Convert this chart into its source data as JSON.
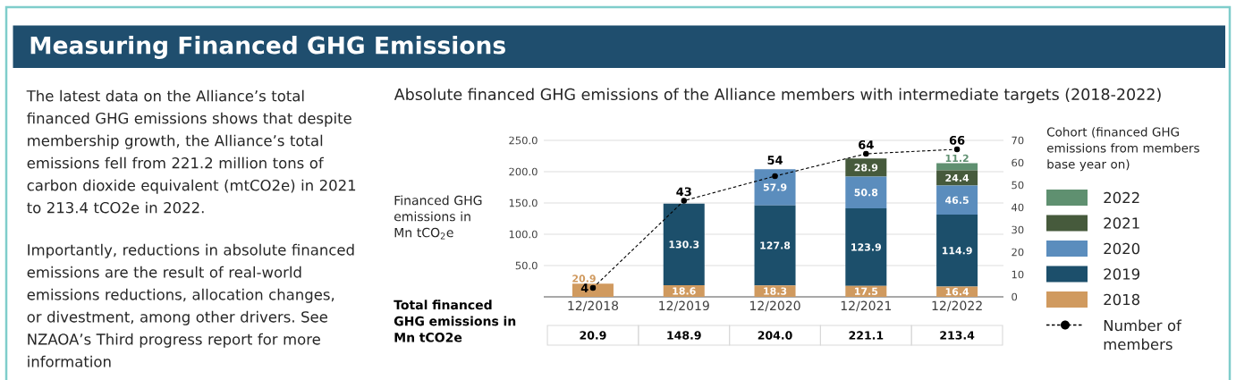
{
  "chart_data": {
    "type": "bar",
    "title": "Measuring Financed GHG Emissions",
    "subtitle": "Absolute financed GHG emissions of the Alliance members with intermediate targets (2018-2022)",
    "ylabel": "Financed GHG emissions in Mn tCO$_{2}$e",
    "legend_title": "Cohort (financed GHG emissions from members base year on)",
    "categories": [
      "12/2018",
      "12/2019",
      "12/2020",
      "12/2021",
      "12/2022"
    ],
    "stacked": true,
    "series": [
      {
        "name": "2018",
        "color": "#d09a5f",
        "values": [
          20.9,
          18.6,
          18.3,
          17.5,
          16.4
        ]
      },
      {
        "name": "2019",
        "color": "#1c4f6b",
        "values": [
          null,
          130.3,
          127.8,
          123.9,
          114.9
        ]
      },
      {
        "name": "2020",
        "color": "#5b8dbd",
        "values": [
          null,
          null,
          57.9,
          50.8,
          46.5
        ]
      },
      {
        "name": "2021",
        "color": "#465a3c",
        "values": [
          null,
          null,
          null,
          28.9,
          24.4
        ]
      },
      {
        "name": "2022",
        "color": "#5f9070",
        "values": [
          null,
          null,
          null,
          null,
          11.2
        ]
      },
      {
        "name": "Number of members",
        "type": "line",
        "axis": "y2",
        "color": "#000000",
        "values": [
          4,
          43,
          54,
          64,
          66
        ]
      }
    ],
    "marker": "circle",
    "line_style": "dashed",
    "ylim": [
      0,
      250
    ],
    "yticks": [
      {
        "value": 50,
        "label": "50.0"
      },
      {
        "value": 100,
        "label": "100.0"
      },
      {
        "value": 150,
        "label": "150.0"
      },
      {
        "value": 200,
        "label": "200.0"
      },
      {
        "value": 250,
        "label": "250.0"
      }
    ],
    "y2lim": [
      0,
      70
    ],
    "y2ticks": [
      0,
      10,
      20,
      30,
      40,
      50,
      60,
      70
    ],
    "grid": "y",
    "legend": "right",
    "data_labels": true,
    "totals": [
      "20.9",
      "148.9",
      "204.0",
      "221.1",
      "213.4"
    ],
    "annotations": [
      "The latest data on the Alliance’s total financed GHG emissions shows that despite membership growth, the Alliance’s total emissions fell from 221.2 million tons of carbon dioxide equivalent (mtCO2e) in 2021 to 213.4 tCO2e in 2022.",
      "Importantly, reductions in absolute financed emissions are the result of real-world emissions reductions, allocation changes, or divestment, among other drivers. See NZAOA’s Third progress report for more information",
      "Total financed GHG emissions in Mn tCO2e"
    ]
  }
}
